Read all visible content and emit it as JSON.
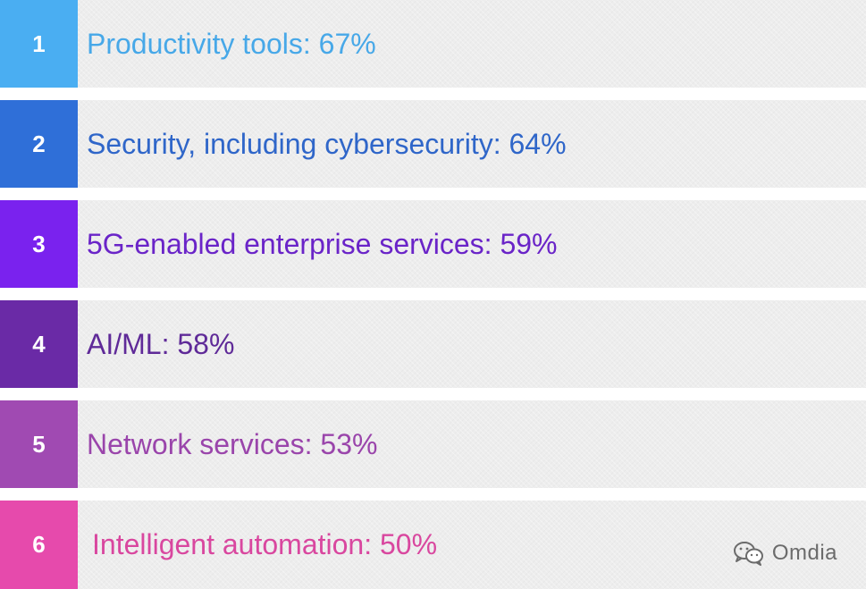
{
  "items": [
    {
      "number": "1",
      "label": "Productivity tools: 67%",
      "value_percent": 67,
      "box_color": "#4aaef2",
      "text_color": "#47a8e8"
    },
    {
      "number": "2",
      "label": "Security, including cybersecurity: 64%",
      "value_percent": 64,
      "box_color": "#2f6fd8",
      "text_color": "#2f66c9"
    },
    {
      "number": "3",
      "label": "5G-enabled enterprise services: 59%",
      "value_percent": 59,
      "box_color": "#7a22ee",
      "text_color": "#6a24c8"
    },
    {
      "number": "4",
      "label": "AI/ML: 58%",
      "value_percent": 58,
      "box_color": "#6a2aa6",
      "text_color": "#5f2a98"
    },
    {
      "number": "5",
      "label": "Network services: 53%",
      "value_percent": 53,
      "box_color": "#a04ab2",
      "text_color": "#9a45ab"
    },
    {
      "number": "6",
      "label": "Intelligent automation: 50%",
      "value_percent": 50,
      "box_color": "#e64aac",
      "text_color": "#d9479f"
    }
  ],
  "watermark": {
    "text": "Omdia",
    "icon": "wechat-icon"
  }
}
